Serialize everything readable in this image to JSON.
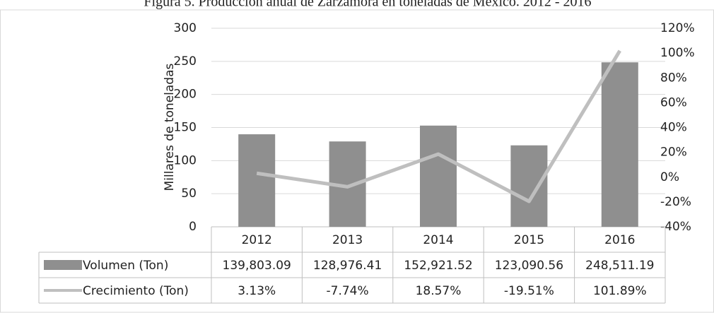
{
  "chart_data": {
    "type": "bar",
    "title": "Figura 5. Producción anual de Zarzamora en toneladas de México. 2012 - 2016",
    "ylabel": "Millares de toneladas",
    "categories": [
      "2012",
      "2013",
      "2014",
      "2015",
      "2016"
    ],
    "series": [
      {
        "name": "Volumen (Ton)",
        "type": "bar",
        "color": "#8f8f8f",
        "values": [
          139.80309,
          128.97641,
          152.92152,
          123.09056,
          248.51119
        ],
        "value_labels": [
          "139,803.09",
          "128,976.41",
          "152,921.52",
          "123,090.56",
          "248,511.19"
        ]
      },
      {
        "name": "Crecimiento (Ton)",
        "type": "line",
        "color": "#bfbfbf",
        "axis": "y2",
        "values": [
          3.13,
          -7.74,
          18.57,
          -19.51,
          101.89
        ],
        "value_labels": [
          "3.13%",
          "-7.74%",
          "18.57%",
          "-19.51%",
          "101.89%"
        ]
      }
    ],
    "ylim": [
      0,
      300
    ],
    "yticks": [
      0,
      50,
      100,
      150,
      200,
      250,
      300
    ],
    "y2lim": [
      -40,
      120
    ],
    "y2ticks": [
      {
        "value": -40,
        "label": "-40%"
      },
      {
        "value": -20,
        "label": "-20%"
      },
      {
        "value": 0,
        "label": "0%"
      },
      {
        "value": 20,
        "label": "20%"
      },
      {
        "value": 40,
        "label": "40%"
      },
      {
        "value": 60,
        "label": "60%"
      },
      {
        "value": 80,
        "label": "80%"
      },
      {
        "value": 100,
        "label": "100%"
      },
      {
        "value": 120,
        "label": "120%"
      }
    ],
    "grid": true
  }
}
